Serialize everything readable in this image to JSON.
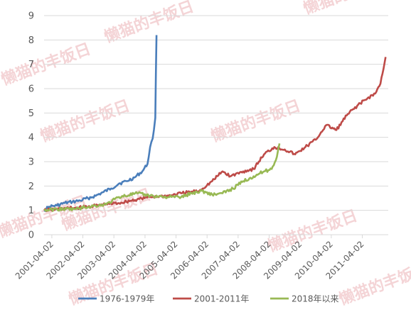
{
  "chart_data": {
    "type": "line",
    "title": "",
    "xlabel": "",
    "ylabel": "",
    "ylim": [
      0,
      9
    ],
    "yticks": [
      0,
      1,
      2,
      3,
      4,
      5,
      6,
      7,
      8,
      9
    ],
    "xlim": [
      "2001-01-01",
      "2012-02-01"
    ],
    "x_tick_labels": [
      "2001-04-02",
      "2002-04-02",
      "2003-04-02",
      "2004-04-02",
      "2005-04-02",
      "2006-04-02",
      "2007-04-02",
      "2008-04-02",
      "2009-04-02",
      "2010-04-02",
      "2011-04-02"
    ],
    "grid": "horizontal",
    "legend_position": "bottom",
    "series": [
      {
        "name": "1976-1979年",
        "color": "#4a7ebb",
        "x": [
          "2001-01-01",
          "2001-03-01",
          "2001-06-01",
          "2001-09-01",
          "2001-12-01",
          "2002-03-01",
          "2002-06-01",
          "2002-09-01",
          "2002-12-01",
          "2003-03-01",
          "2003-06-01",
          "2003-09-01",
          "2003-12-01",
          "2004-03-01",
          "2004-05-01",
          "2004-06-01",
          "2004-07-01",
          "2004-08-01",
          "2004-08-15"
        ],
        "y": [
          1.0,
          1.15,
          1.2,
          1.3,
          1.35,
          1.4,
          1.5,
          1.6,
          1.75,
          1.9,
          2.1,
          2.2,
          2.35,
          2.6,
          2.9,
          3.6,
          3.95,
          4.8,
          8.2
        ]
      },
      {
        "name": "2001-2011年",
        "color": "#be4b48",
        "x": [
          "2001-01-01",
          "2001-06-01",
          "2002-01-01",
          "2002-06-01",
          "2003-01-01",
          "2003-06-01",
          "2004-01-01",
          "2004-06-01",
          "2005-01-01",
          "2005-06-01",
          "2006-01-01",
          "2006-06-01",
          "2006-10-01",
          "2007-01-01",
          "2007-06-01",
          "2007-10-01",
          "2008-02-01",
          "2008-06-01",
          "2008-10-01",
          "2009-02-01",
          "2009-06-01",
          "2009-10-01",
          "2010-02-01",
          "2010-06-01",
          "2010-10-01",
          "2011-02-01",
          "2011-06-01",
          "2011-09-01",
          "2011-11-01",
          "2012-01-01"
        ],
        "y": [
          1.0,
          1.05,
          1.1,
          1.15,
          1.25,
          1.3,
          1.45,
          1.55,
          1.6,
          1.7,
          1.8,
          2.2,
          2.6,
          2.4,
          2.6,
          2.7,
          3.3,
          3.6,
          3.5,
          3.3,
          3.6,
          3.9,
          4.5,
          4.3,
          4.9,
          5.3,
          5.6,
          5.8,
          6.2,
          7.3
        ]
      },
      {
        "name": "2018年以来",
        "color": "#98b954",
        "x": [
          "2001-01-01",
          "2001-06-01",
          "2002-01-01",
          "2002-06-01",
          "2003-01-01",
          "2003-06-01",
          "2004-01-01",
          "2004-06-01",
          "2005-01-01",
          "2005-06-01",
          "2005-10-01",
          "2006-02-01",
          "2006-06-01",
          "2006-10-01",
          "2007-02-01",
          "2007-06-01",
          "2007-10-01",
          "2008-02-01",
          "2008-05-01",
          "2008-07-01",
          "2008-08-01"
        ],
        "y": [
          1.0,
          1.05,
          1.05,
          1.15,
          1.25,
          1.55,
          1.7,
          1.6,
          1.55,
          1.55,
          1.7,
          1.8,
          1.65,
          1.7,
          1.9,
          2.2,
          2.4,
          2.6,
          2.7,
          3.2,
          3.75
        ]
      }
    ]
  },
  "watermark": {
    "text": "懒猫的丰饭日",
    "color": "#e8a1a6"
  }
}
